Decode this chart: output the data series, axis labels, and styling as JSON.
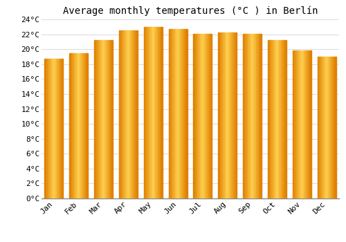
{
  "months": [
    "Jan",
    "Feb",
    "Mar",
    "Apr",
    "May",
    "Jun",
    "Jul",
    "Aug",
    "Sep",
    "Oct",
    "Nov",
    "Dec"
  ],
  "values": [
    18.7,
    19.5,
    21.2,
    22.5,
    23.0,
    22.7,
    22.1,
    22.2,
    22.1,
    21.2,
    19.8,
    19.0
  ],
  "bar_color_center": "#FFB81C",
  "bar_color_edge": "#F0A000",
  "background_color": "#FFFFFF",
  "grid_color": "#DDDDDD",
  "title": "Average monthly temperatures (°C ) in Berlín",
  "ylim": [
    0,
    24
  ],
  "ytick_step": 2,
  "title_fontsize": 10,
  "tick_fontsize": 8,
  "font_family": "monospace"
}
